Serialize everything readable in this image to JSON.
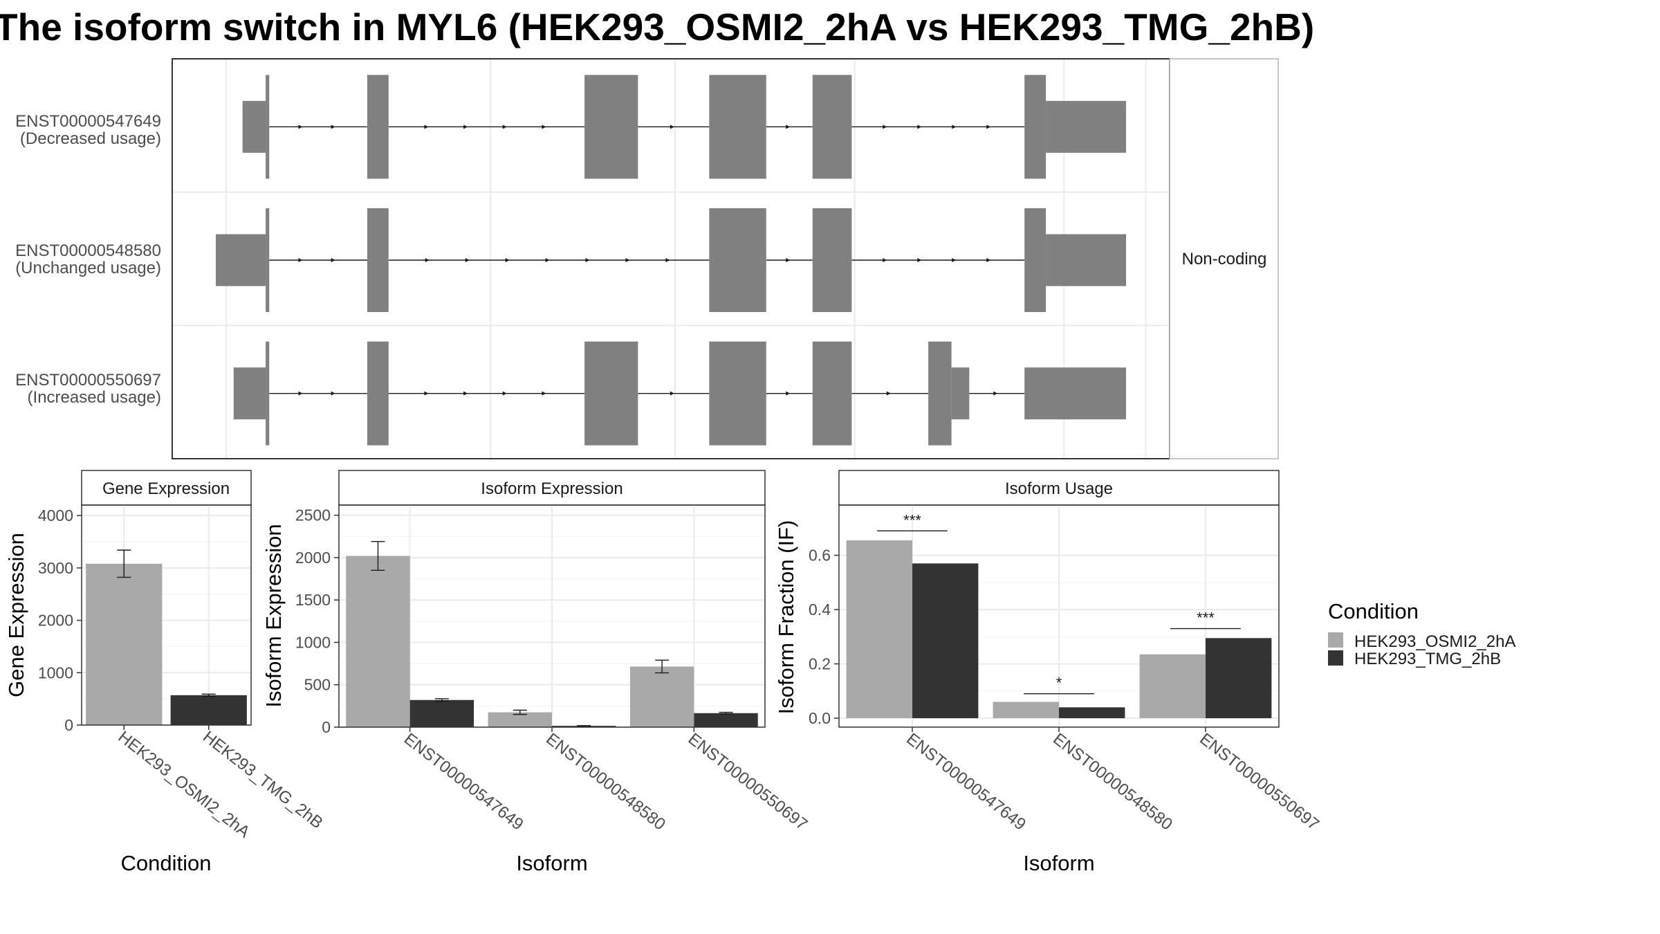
{
  "title": "The isoform switch in MYL6 (HEK293_OSMI2_2hA vs HEK293_TMG_2hB)",
  "colors": {
    "condition_a": "#a9a9a9",
    "condition_b": "#333333",
    "exon": "#808080",
    "grid": "#ebebeb",
    "panel_border": "#333333",
    "strip_border": "#b3b3b3"
  },
  "chart_data": [
    {
      "type": "gene-structure",
      "panel": "isoform-structure",
      "strip_label": "Non-coding",
      "isoforms": [
        {
          "id": "ENST00000547649",
          "usage": "(Decreased usage)",
          "exons": [
            {
              "start": 15,
              "end": 28,
              "kind": "utr"
            },
            {
              "start": 28,
              "end": 30,
              "kind": "cds"
            },
            {
              "start": 85,
              "end": 97,
              "kind": "cds"
            },
            {
              "start": 207,
              "end": 237,
              "kind": "cds"
            },
            {
              "start": 277,
              "end": 309,
              "kind": "cds"
            },
            {
              "start": 335,
              "end": 357,
              "kind": "cds"
            },
            {
              "start": 454,
              "end": 466,
              "kind": "cds"
            },
            {
              "start": 466,
              "end": 511,
              "kind": "utr"
            }
          ]
        },
        {
          "id": "ENST00000548580",
          "usage": "(Unchanged usage)",
          "exons": [
            {
              "start": 0,
              "end": 28,
              "kind": "utr"
            },
            {
              "start": 28,
              "end": 30,
              "kind": "cds"
            },
            {
              "start": 85,
              "end": 97,
              "kind": "cds"
            },
            {
              "start": 277,
              "end": 309,
              "kind": "cds"
            },
            {
              "start": 335,
              "end": 357,
              "kind": "cds"
            },
            {
              "start": 454,
              "end": 466,
              "kind": "cds"
            },
            {
              "start": 466,
              "end": 511,
              "kind": "utr"
            }
          ]
        },
        {
          "id": "ENST00000550697",
          "usage": "(Increased usage)",
          "exons": [
            {
              "start": 10,
              "end": 28,
              "kind": "utr"
            },
            {
              "start": 28,
              "end": 30,
              "kind": "cds"
            },
            {
              "start": 85,
              "end": 97,
              "kind": "cds"
            },
            {
              "start": 207,
              "end": 237,
              "kind": "cds"
            },
            {
              "start": 277,
              "end": 309,
              "kind": "cds"
            },
            {
              "start": 335,
              "end": 357,
              "kind": "cds"
            },
            {
              "start": 400,
              "end": 413,
              "kind": "cds"
            },
            {
              "start": 413,
              "end": 423,
              "kind": "utr"
            },
            {
              "start": 454,
              "end": 511,
              "kind": "utr"
            }
          ]
        }
      ]
    },
    {
      "type": "bar",
      "panel": "gene-expression",
      "strip_title": "Gene Expression",
      "xlabel": "Condition",
      "ylabel": "Gene Expression",
      "ylim": [
        0,
        4200
      ],
      "yticks": [
        0,
        1000,
        2000,
        3000,
        4000
      ],
      "categories": [
        "HEK293_OSMI2_2hA",
        "HEK293_TMG_2hB"
      ],
      "values": [
        3080,
        570
      ],
      "errors": [
        260,
        20
      ]
    },
    {
      "type": "bar",
      "panel": "isoform-expression",
      "strip_title": "Isoform Expression",
      "xlabel": "Isoform",
      "ylabel": "Isoform Expression",
      "ylim": [
        0,
        2620
      ],
      "yticks": [
        0,
        500,
        1000,
        1500,
        2000,
        2500
      ],
      "categories": [
        "ENST00000547649",
        "ENST00000548580",
        "ENST00000550697"
      ],
      "series": [
        {
          "name": "HEK293_OSMI2_2hA",
          "values": [
            2020,
            175,
            715
          ],
          "errors": [
            170,
            25,
            75
          ]
        },
        {
          "name": "HEK293_TMG_2hB",
          "values": [
            320,
            15,
            165
          ],
          "errors": [
            15,
            3,
            10
          ]
        }
      ]
    },
    {
      "type": "bar",
      "panel": "isoform-usage",
      "strip_title": "Isoform Usage",
      "xlabel": "Isoform",
      "ylabel": "Isoform Fraction (IF)",
      "ylim": [
        -0.033,
        0.785
      ],
      "yticks": [
        0.0,
        0.2,
        0.4,
        0.6
      ],
      "yticklabels": [
        "0.0",
        "0.2",
        "0.4",
        "0.6"
      ],
      "categories": [
        "ENST00000547649",
        "ENST00000548580",
        "ENST00000550697"
      ],
      "series": [
        {
          "name": "HEK293_OSMI2_2hA",
          "values": [
            0.655,
            0.06,
            0.235
          ]
        },
        {
          "name": "HEK293_TMG_2hB",
          "values": [
            0.57,
            0.04,
            0.295
          ]
        }
      ],
      "significance": [
        {
          "category": "ENST00000547649",
          "label": "***",
          "y": 0.69
        },
        {
          "category": "ENST00000548580",
          "label": "*",
          "y": 0.09
        },
        {
          "category": "ENST00000550697",
          "label": "***",
          "y": 0.33
        }
      ]
    }
  ],
  "legend": {
    "title": "Condition",
    "items": [
      "HEK293_OSMI2_2hA",
      "HEK293_TMG_2hB"
    ]
  }
}
